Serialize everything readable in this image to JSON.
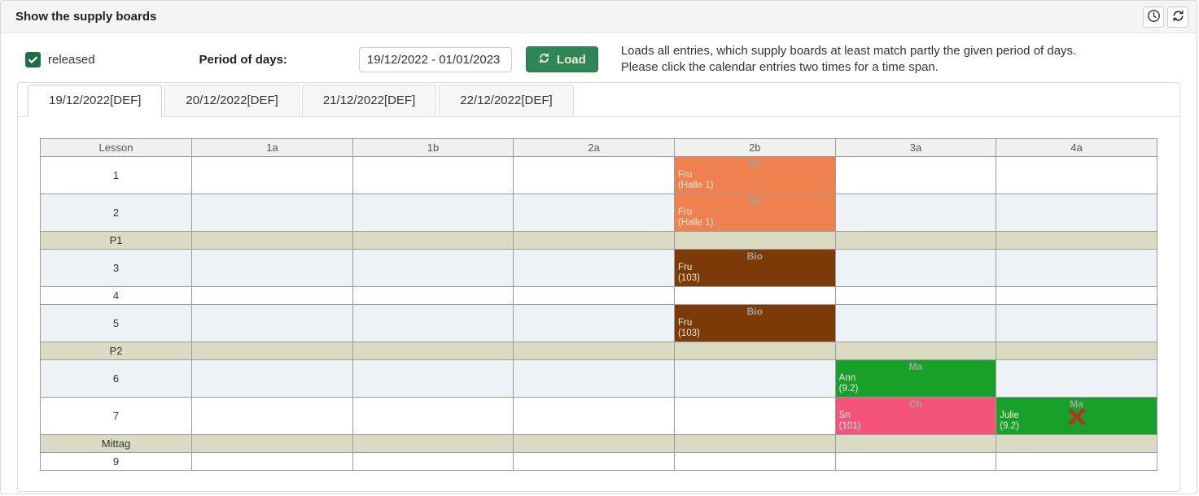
{
  "header": {
    "title": "Show the supply boards",
    "icons": [
      {
        "name": "clock"
      },
      {
        "name": "refresh"
      }
    ]
  },
  "controls": {
    "released_label": "released",
    "released_checked": true,
    "period_label": "Period of days:",
    "period_value": "19/12/2022 - 01/01/2023",
    "load_label": "Load",
    "help_line1": "Loads all entries, which supply boards at least match partly the given period of days.",
    "help_line2": "Please click the calendar entries two times for a time span."
  },
  "tabs": [
    {
      "label": "19/12/2022[DEF]",
      "active": true
    },
    {
      "label": "20/12/2022[DEF]",
      "active": false
    },
    {
      "label": "21/12/2022[DEF]",
      "active": false
    },
    {
      "label": "22/12/2022[DEF]",
      "active": false
    }
  ],
  "board": {
    "columns": [
      "Lesson",
      "1a",
      "1b",
      "2a",
      "2b",
      "3a",
      "4a"
    ],
    "colors": {
      "orange": "#ef8050",
      "brown": "#7b3a08",
      "green": "#18a02b",
      "pink": "#f4537b",
      "period_bg": "#dbdbc4",
      "alt_row_bg": "#edf2f7",
      "header_bg": "#f0f0f0",
      "cancel_x": "#a63b1f",
      "button_green": "#2e8656",
      "checkbox_green": "#1e6f45"
    },
    "rows": [
      {
        "label": "1",
        "kind": "lesson",
        "height": "tall",
        "alt": false,
        "entries": [
          {
            "col": "2b",
            "subject": "Sp",
            "teacher": "Fru",
            "room": "(Halle 1)",
            "color": "orange",
            "cancelled": false
          }
        ]
      },
      {
        "label": "2",
        "kind": "lesson",
        "height": "tall",
        "alt": true,
        "entries": [
          {
            "col": "2b",
            "subject": "Sp",
            "teacher": "Fru",
            "room": "(Halle 1)",
            "color": "orange",
            "cancelled": false
          }
        ]
      },
      {
        "label": "P1",
        "kind": "period",
        "height": "short",
        "alt": false,
        "entries": []
      },
      {
        "label": "3",
        "kind": "lesson",
        "height": "tall",
        "alt": true,
        "entries": [
          {
            "col": "2b",
            "subject": "Bio",
            "teacher": "Fru",
            "room": "(103)",
            "color": "brown",
            "cancelled": false
          }
        ]
      },
      {
        "label": "4",
        "kind": "lesson",
        "height": "short",
        "alt": false,
        "entries": []
      },
      {
        "label": "5",
        "kind": "lesson",
        "height": "tall",
        "alt": true,
        "entries": [
          {
            "col": "2b",
            "subject": "Bio",
            "teacher": "Fru",
            "room": "(103)",
            "color": "brown",
            "cancelled": false
          }
        ]
      },
      {
        "label": "P2",
        "kind": "period",
        "height": "short",
        "alt": false,
        "entries": []
      },
      {
        "label": "6",
        "kind": "lesson",
        "height": "tall",
        "alt": true,
        "entries": [
          {
            "col": "3a",
            "subject": "Ma",
            "teacher": "Ann",
            "room": "(9.2)",
            "color": "green",
            "cancelled": false
          }
        ]
      },
      {
        "label": "7",
        "kind": "lesson",
        "height": "tall",
        "alt": false,
        "entries": [
          {
            "col": "3a",
            "subject": "Ch",
            "teacher": "Sn",
            "room": "(101)",
            "color": "pink",
            "cancelled": false
          },
          {
            "col": "4a",
            "subject": "Ma",
            "teacher": "Julie",
            "room": "(9.2)",
            "color": "green",
            "cancelled": true
          }
        ]
      },
      {
        "label": "Mittag",
        "kind": "period",
        "height": "short",
        "alt": false,
        "entries": []
      },
      {
        "label": "9",
        "kind": "lesson",
        "height": "short",
        "alt": false,
        "entries": []
      }
    ]
  }
}
